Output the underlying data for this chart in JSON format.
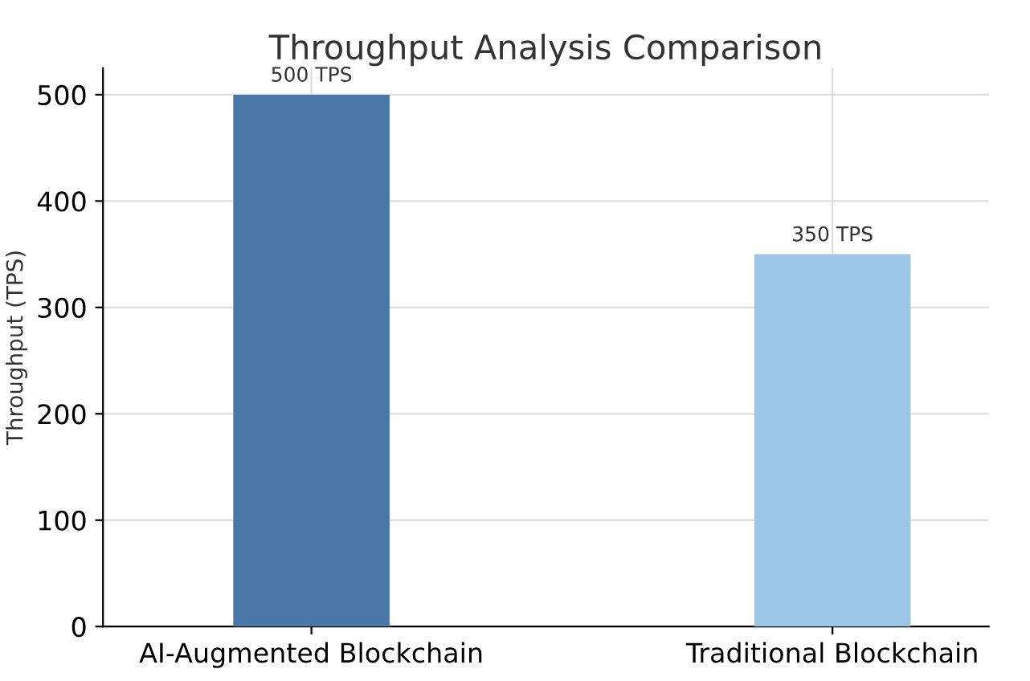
{
  "chart_data": {
    "type": "bar",
    "title": "Throughput Analysis Comparison",
    "ylabel": "Throughput (TPS)",
    "categories": [
      "AI-Augmented Blockchain",
      "Traditional Blockchain"
    ],
    "values": [
      500,
      350
    ],
    "colors": [
      "#4a76a8",
      "#9dc6e6"
    ],
    "value_labels": [
      "500 TPS",
      "350 TPS"
    ],
    "ylim": [
      0,
      525
    ],
    "yticks": [
      0,
      100,
      200,
      300,
      400,
      500
    ],
    "grid": true
  }
}
